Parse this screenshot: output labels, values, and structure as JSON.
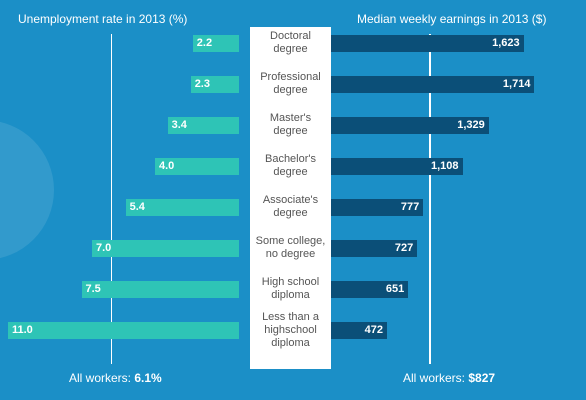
{
  "chart_data": {
    "type": "bar",
    "categories": [
      "Doctoral\ndegree",
      "Professional\ndegree",
      "Master's\ndegree",
      "Bachelor's\ndegree",
      "Associate's\ndegree",
      "Some college,\nno degree",
      "High school\ndiploma",
      "Less than a\nhighschool\ndiploma"
    ],
    "series": [
      {
        "name": "Unemployment rate in 2013 (%)",
        "values": [
          2.2,
          2.3,
          3.4,
          4.0,
          5.4,
          7.0,
          7.5,
          11.0
        ],
        "labels": [
          "2.2",
          "2.3",
          "3.4",
          "4.0",
          "5.4",
          "7.0",
          "7.5",
          "11.0"
        ],
        "color": "#2ec4b6"
      },
      {
        "name": "Median weekly earnings in 2013 ($)",
        "values": [
          1623,
          1714,
          1329,
          1108,
          777,
          727,
          651,
          472
        ],
        "labels": [
          "1,623",
          "1,714",
          "1,329",
          "1,108",
          "777",
          "727",
          "651",
          "472"
        ],
        "color": "#0b4f78"
      }
    ],
    "reference": {
      "left": {
        "prefix": "All workers: ",
        "value_label": "6.1%",
        "value": 6.1
      },
      "right": {
        "prefix": "All workers: ",
        "value_label": "$827",
        "value": 827
      }
    }
  },
  "colors": {
    "background": "#1b8fc7",
    "unemployment_bar": "#2ec4b6",
    "earnings_bar": "#0b4f78",
    "center_column": "#ffffff",
    "category_text": "#555555"
  }
}
